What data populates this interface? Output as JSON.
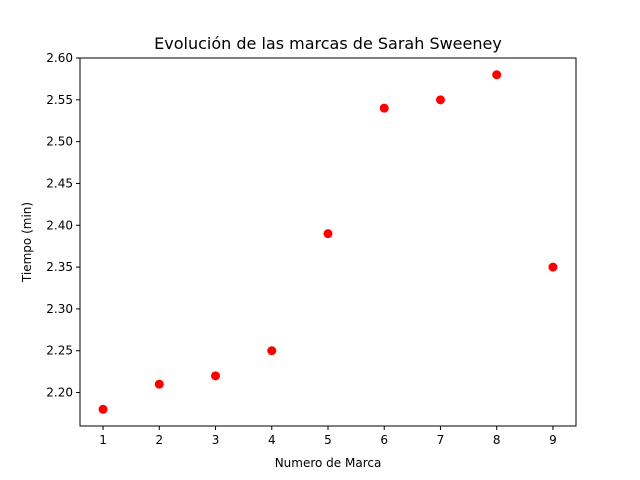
{
  "chart_data": {
    "type": "scatter",
    "title": "Evolución de las marcas de Sarah Sweeney",
    "xlabel": "Numero  de Marca",
    "ylabel": "Tiempo (min)",
    "xlim": [
      0.59,
      9.41
    ],
    "ylim": [
      2.16,
      2.6
    ],
    "x_ticks": [
      1,
      2,
      3,
      4,
      5,
      6,
      7,
      8,
      9
    ],
    "y_ticks": [
      "2.20",
      "2.25",
      "2.30",
      "2.35",
      "2.40",
      "2.45",
      "2.50",
      "2.55",
      "2.60"
    ],
    "grid": false,
    "series": [
      {
        "color": "#ff0000",
        "x": [
          1,
          2,
          3,
          4,
          5,
          6,
          7,
          8,
          9
        ],
        "y": [
          2.18,
          2.21,
          2.22,
          2.25,
          2.39,
          2.54,
          2.55,
          2.58,
          2.35
        ]
      }
    ]
  }
}
